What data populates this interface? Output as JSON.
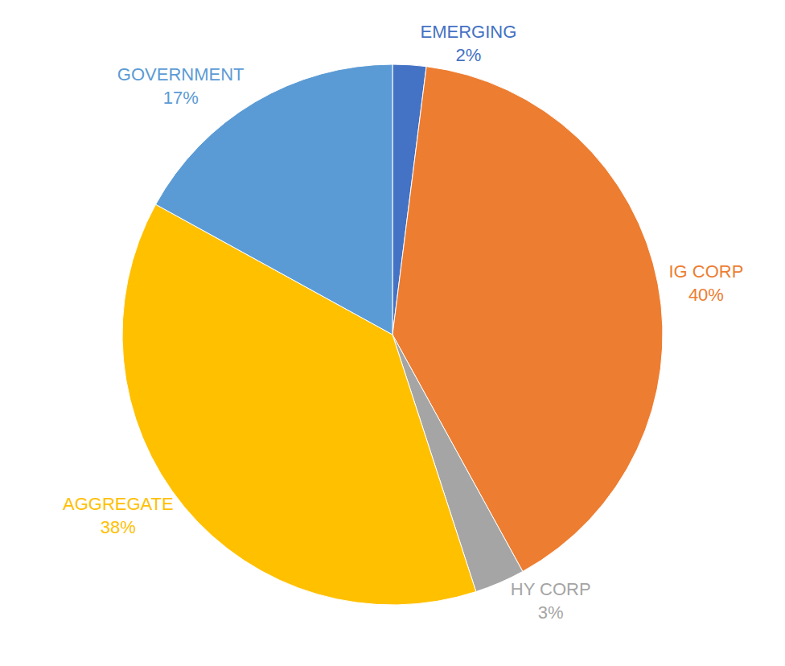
{
  "chart_data": {
    "type": "pie",
    "categories": [
      "EMERGING",
      "IG CORP",
      "HY CORP",
      "AGGREGATE",
      "GOVERNMENT"
    ],
    "values": [
      2,
      40,
      3,
      38,
      17
    ],
    "value_labels": [
      "2%",
      "40%",
      "3%",
      "38%",
      "17%"
    ],
    "colors": [
      "#4472c4",
      "#ed7d31",
      "#a5a5a5",
      "#ffc000",
      "#5b9bd5"
    ],
    "data_labels": true
  }
}
